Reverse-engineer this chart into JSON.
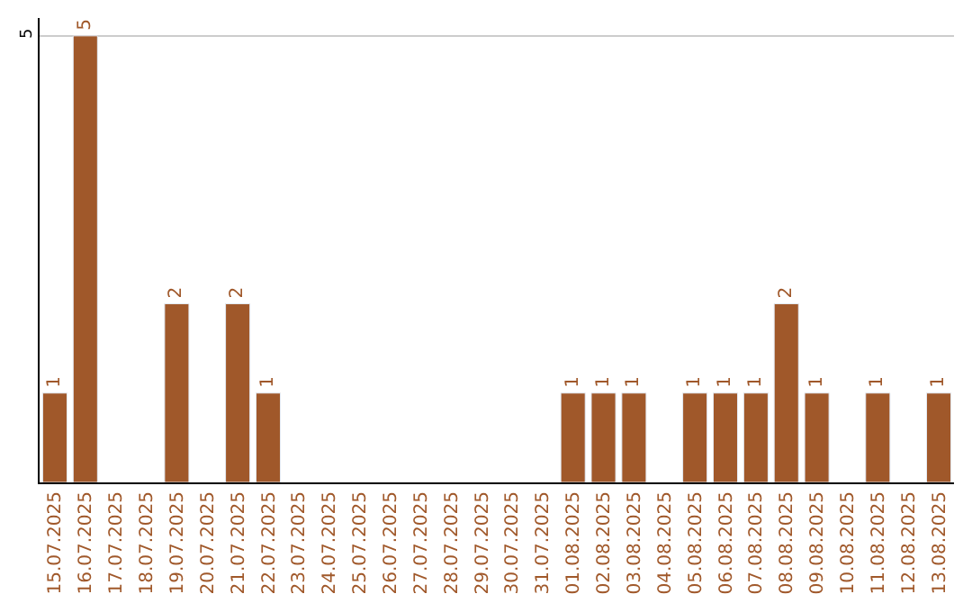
{
  "chart_data": {
    "type": "bar",
    "categories": [
      "15.07.2025",
      "16.07.2025",
      "17.07.2025",
      "18.07.2025",
      "19.07.2025",
      "20.07.2025",
      "21.07.2025",
      "22.07.2025",
      "23.07.2025",
      "24.07.2025",
      "25.07.2025",
      "26.07.2025",
      "27.07.2025",
      "28.07.2025",
      "29.07.2025",
      "30.07.2025",
      "31.07.2025",
      "01.08.2025",
      "02.08.2025",
      "03.08.2025",
      "04.08.2025",
      "05.08.2025",
      "06.08.2025",
      "07.08.2025",
      "08.08.2025",
      "09.08.2025",
      "10.08.2025",
      "11.08.2025",
      "12.08.2025",
      "13.08.2025"
    ],
    "values": [
      1,
      5,
      null,
      null,
      2,
      null,
      2,
      1,
      null,
      null,
      null,
      null,
      null,
      null,
      null,
      null,
      null,
      1,
      1,
      1,
      null,
      1,
      1,
      1,
      2,
      1,
      null,
      1,
      null,
      1
    ],
    "value_labels": [
      "1",
      "5",
      null,
      null,
      "2",
      null,
      "2",
      "1",
      null,
      null,
      null,
      null,
      null,
      null,
      null,
      null,
      null,
      "1",
      "1",
      "1",
      null,
      "1",
      "1",
      "1",
      "2",
      "1",
      null,
      "1",
      null,
      "1"
    ],
    "color": "#a0582a",
    "ylim": [
      0,
      5.2
    ],
    "yticks": [
      5
    ],
    "grid": "y",
    "legend": false
  }
}
